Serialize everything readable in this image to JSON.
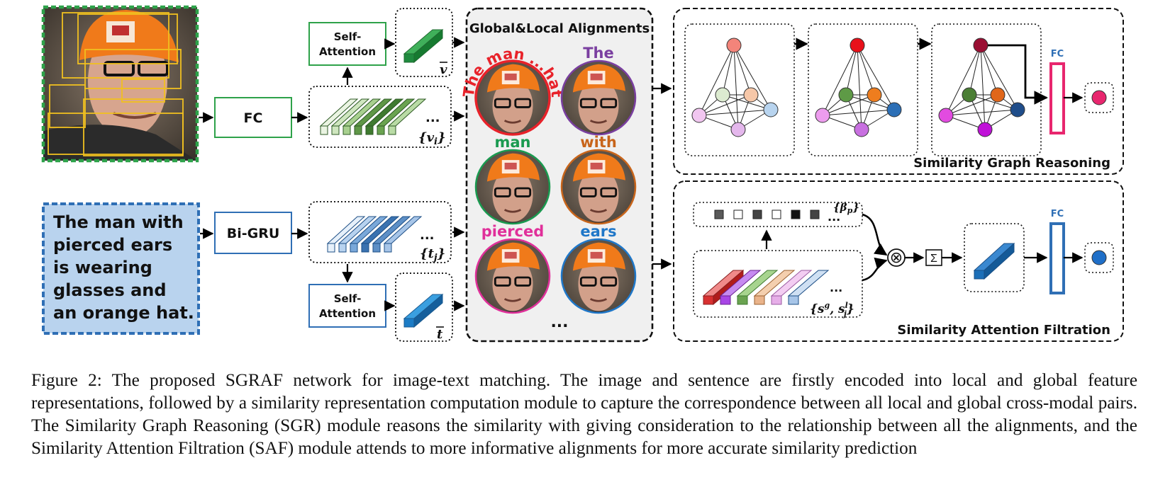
{
  "diagram": {
    "fc_label": "FC",
    "bigru_label": "Bi-GRU",
    "self_attention_line1": "Self-",
    "self_attention_line2": "Attention",
    "sentence_lines": [
      "The man with",
      "pierced ears",
      "is wearing",
      "glasses and",
      "an orange hat."
    ],
    "v_bar": "v",
    "t_bar": "t",
    "v_i": "{v",
    "v_i_sub": "i",
    "v_i_close": "}",
    "t_j": "{t",
    "t_j_sub": "j",
    "t_j_close": "}",
    "ellipsis": "...",
    "alignments_title": "Global&Local  Alignments",
    "alignment_labels": [
      {
        "text": "The man ...hat",
        "color": "#e8222a"
      },
      {
        "text": "The",
        "color": "#7a3fa0"
      },
      {
        "text": "man",
        "color": "#1a9a50"
      },
      {
        "text": "with",
        "color": "#c8651b"
      },
      {
        "text": "pierced",
        "color": "#e0309a"
      },
      {
        "text": "ears",
        "color": "#1f77c8"
      }
    ],
    "sgr_title": "Similarity Graph Reasoning",
    "saf_title": "Similarity Attention Filtration",
    "fc_small": "FC",
    "beta": "{β",
    "beta_sub": "p",
    "beta_close": "}",
    "s_set": "{s",
    "s_sup_g": "g",
    "s_mid": ", s",
    "s_sup_l": "l",
    "s_sub_j": "j",
    "s_close": "}",
    "sigma": "Σ",
    "otimes": "⊗"
  },
  "colors": {
    "green": "#2ea24a",
    "blue": "#2f6fb5",
    "pink": "#e8266e",
    "sentence_bg": "#b9d3ee",
    "alignment_panel_bg": "#f0f0f0"
  },
  "caption": "Figure 2: The proposed SGRAF network for image-text matching. The image and sentence are firstly encoded into local and global feature representations, followed by a similarity representation computation module to capture the correspondence between all local and global cross-modal pairs. The Similarity Graph Reasoning (SGR) module reasons the similarity with giving consideration to the relationship between all the alignments, and the Similarity Attention Filtration (SAF) module attends to more informative alignments for more accurate similarity prediction"
}
